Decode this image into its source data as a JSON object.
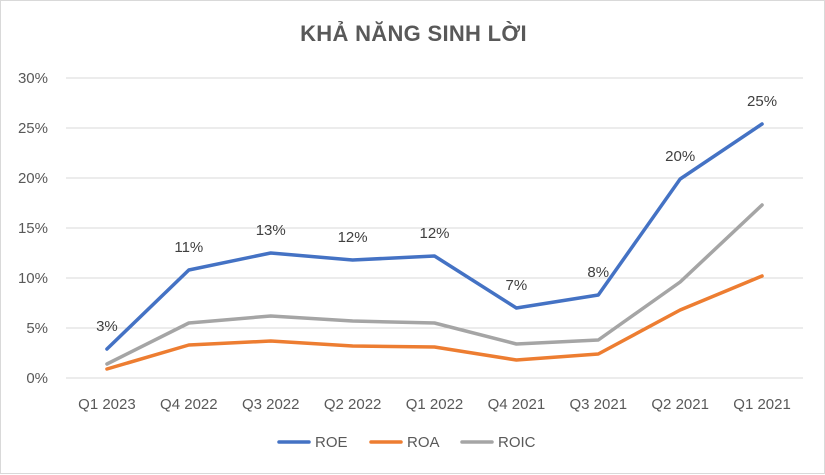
{
  "chart_data": {
    "type": "line",
    "title": "KHẢ NĂNG SINH LỜI",
    "categories": [
      "Q1 2023",
      "Q4 2022",
      "Q3 2022",
      "Q2 2022",
      "Q1 2022",
      "Q4 2021",
      "Q3 2021",
      "Q2 2021",
      "Q1 2021"
    ],
    "ylim": [
      0,
      30
    ],
    "y_ticks": [
      "0%",
      "5%",
      "10%",
      "15%",
      "20%",
      "25%",
      "30%"
    ],
    "grid": true,
    "legend_position": "bottom",
    "series": [
      {
        "name": "ROE",
        "color": "#4472c4",
        "values": [
          2.9,
          10.8,
          12.5,
          11.8,
          12.2,
          7.0,
          8.3,
          19.9,
          25.4
        ],
        "data_labels": [
          "3%",
          "11%",
          "13%",
          "12%",
          "12%",
          "7%",
          "8%",
          "20%",
          "25%"
        ]
      },
      {
        "name": "ROA",
        "color": "#ed7d31",
        "values": [
          0.9,
          3.3,
          3.7,
          3.2,
          3.1,
          1.8,
          2.4,
          6.8,
          10.2
        ]
      },
      {
        "name": "ROIC",
        "color": "#a5a5a5",
        "values": [
          1.4,
          5.5,
          6.2,
          5.7,
          5.5,
          3.4,
          3.8,
          9.6,
          17.3
        ]
      }
    ]
  }
}
